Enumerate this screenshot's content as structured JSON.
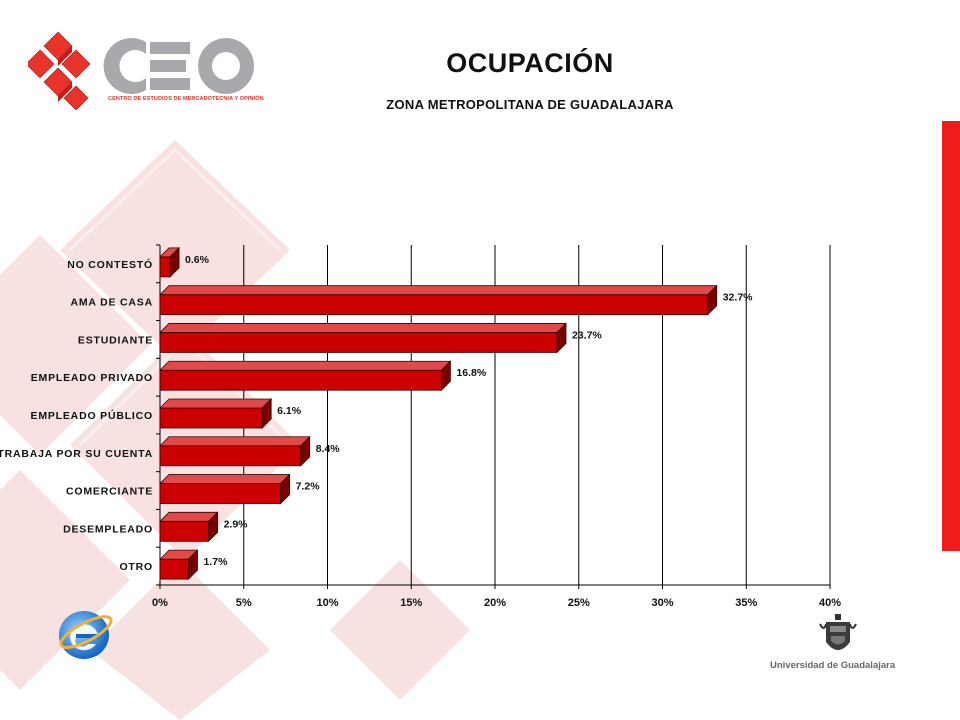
{
  "header": {
    "title": "OCUPACIÓN",
    "subtitle": "ZONA METROPOLITANA DE GUADALAJARA"
  },
  "logo": {
    "name": "CEO",
    "tagline": "CENTRO DE ESTUDIOS DE MERCADOTECNIA Y OPINIÓN"
  },
  "footer": {
    "institution": "Universidad de Guadalajara"
  },
  "colors": {
    "bar": "#cc0000",
    "bar_top": "#e24a4a",
    "bar_side": "#7a0000",
    "accent": "#ee1c1c",
    "background_deco": "#f7e3e3"
  },
  "icons": [
    "ceo-logo-icon",
    "internet-explorer-icon",
    "udg-crest-icon"
  ],
  "chart_data": {
    "type": "bar",
    "orientation": "horizontal",
    "categories": [
      "NO CONTESTÓ",
      "AMA DE CASA",
      "ESTUDIANTE",
      "EMPLEADO PRIVADO",
      "EMPLEADO PÚBLICO",
      "TRABAJA POR SU CUENTA",
      "COMERCIANTE",
      "DESEMPLEADO",
      "OTRO"
    ],
    "values": [
      0.6,
      32.7,
      23.7,
      16.8,
      6.1,
      8.4,
      7.2,
      2.9,
      1.7
    ],
    "value_labels": [
      "0.6%",
      "32.7%",
      "23.7%",
      "16.8%",
      "6.1%",
      "8.4%",
      "7.2%",
      "2.9%",
      "1.7%"
    ],
    "xlim": [
      0,
      40
    ],
    "xticks": [
      "0%",
      "5%",
      "10%",
      "15%",
      "20%",
      "25%",
      "30%",
      "35%",
      "40%"
    ],
    "grid": true,
    "legend": false
  }
}
